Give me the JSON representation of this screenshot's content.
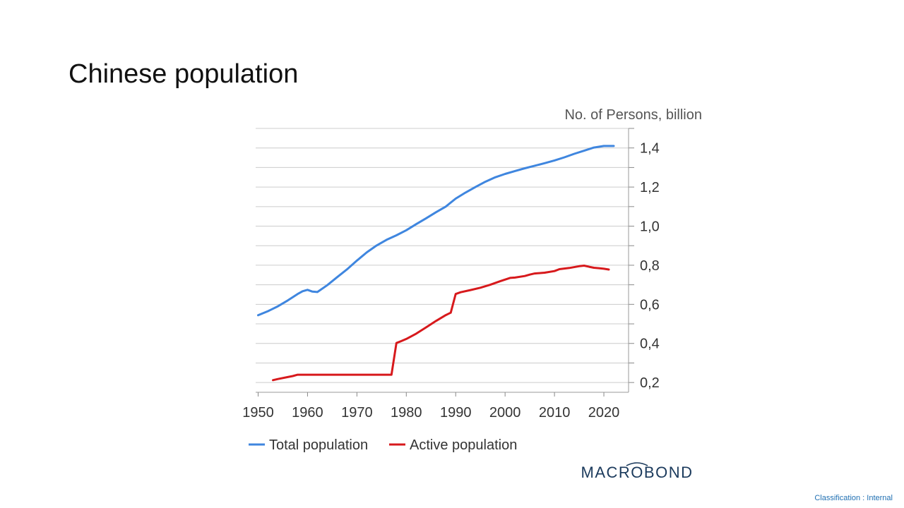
{
  "slide": {
    "title": "Chinese population",
    "classification": "Classification : Internal"
  },
  "logo": {
    "text": "MACROBOND"
  },
  "chart_data": {
    "type": "line",
    "title": "Chinese population",
    "ylabel": "No. of Persons, billion",
    "xlim": [
      1949.5,
      2025
    ],
    "ylim": [
      0.15,
      1.5
    ],
    "x_ticks": [
      1950,
      1960,
      1970,
      1980,
      1990,
      2000,
      2010,
      2020
    ],
    "y_ticks": [
      0.2,
      0.4,
      0.6,
      0.8,
      1.0,
      1.2,
      1.4
    ],
    "y_tick_labels": [
      "0,2",
      "0,4",
      "0,6",
      "0,8",
      "1,0",
      "1,2",
      "1,4"
    ],
    "grid": true,
    "legend_position": "bottom",
    "series": [
      {
        "name": "Total population",
        "color": "#3f86df",
        "x": [
          1950,
          1952,
          1954,
          1956,
          1958,
          1959,
          1960,
          1961,
          1962,
          1964,
          1966,
          1968,
          1970,
          1972,
          1974,
          1976,
          1978,
          1980,
          1982,
          1984,
          1986,
          1988,
          1990,
          1992,
          1994,
          1996,
          1998,
          2000,
          2002,
          2004,
          2006,
          2008,
          2010,
          2012,
          2014,
          2016,
          2018,
          2020,
          2022
        ],
        "values": [
          0.544,
          0.565,
          0.59,
          0.62,
          0.653,
          0.667,
          0.674,
          0.665,
          0.663,
          0.698,
          0.739,
          0.779,
          0.824,
          0.866,
          0.901,
          0.93,
          0.953,
          0.979,
          1.01,
          1.04,
          1.071,
          1.1,
          1.141,
          1.172,
          1.2,
          1.227,
          1.25,
          1.267,
          1.282,
          1.296,
          1.309,
          1.322,
          1.336,
          1.352,
          1.37,
          1.386,
          1.402,
          1.41,
          1.41
        ]
      },
      {
        "name": "Active population",
        "color": "#d7191c",
        "x": [
          1953,
          1954,
          1956,
          1957,
          1958,
          1960,
          1965,
          1970,
          1975,
          1977,
          1978,
          1979,
          1980,
          1982,
          1984,
          1986,
          1988,
          1989,
          1990,
          1991,
          1993,
          1995,
          1997,
          1999,
          2001,
          2002,
          2004,
          2005,
          2006,
          2008,
          2010,
          2011,
          2013,
          2015,
          2016,
          2017,
          2018,
          2019,
          2020,
          2021
        ],
        "values": [
          0.212,
          0.218,
          0.228,
          0.233,
          0.24,
          0.24,
          0.24,
          0.24,
          0.24,
          0.24,
          0.402,
          0.412,
          0.423,
          0.45,
          0.482,
          0.515,
          0.545,
          0.557,
          0.653,
          0.662,
          0.673,
          0.685,
          0.7,
          0.718,
          0.735,
          0.737,
          0.745,
          0.752,
          0.758,
          0.762,
          0.77,
          0.78,
          0.786,
          0.795,
          0.798,
          0.792,
          0.787,
          0.785,
          0.782,
          0.778
        ]
      }
    ]
  }
}
